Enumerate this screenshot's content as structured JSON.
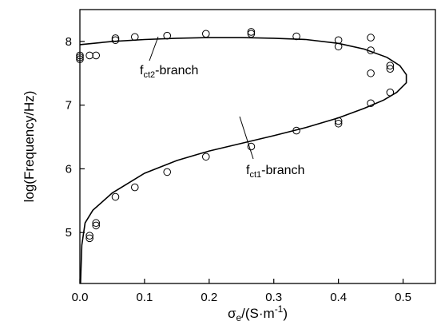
{
  "chart_data": {
    "type": "scatter",
    "xlabel_parts": {
      "sigma": "σ",
      "sub": "e",
      "pre": "/(S·m",
      "sup": "-1",
      "post": ")"
    },
    "ylabel": "log(Frequency/Hz)",
    "xlim": [
      0.0,
      0.55
    ],
    "ylim": [
      4.2,
      8.5
    ],
    "x_ticks": [
      "0.0",
      "0.1",
      "0.2",
      "0.3",
      "0.4",
      "0.5"
    ],
    "y_ticks": [
      "5",
      "6",
      "7",
      "8"
    ],
    "grid": false,
    "annotations": [
      {
        "main": "f",
        "sub": "ct2",
        "suffix": "-branch"
      },
      {
        "main": "f",
        "sub": "ct1",
        "suffix": "-branch"
      }
    ],
    "series": [
      {
        "marker": "open-circle",
        "points": [
          [
            0.0,
            7.72
          ],
          [
            0.0,
            7.75
          ],
          [
            0.0,
            7.78
          ],
          [
            0.015,
            7.78
          ],
          [
            0.025,
            7.78
          ],
          [
            0.055,
            8.02
          ],
          [
            0.055,
            8.05
          ],
          [
            0.085,
            8.07
          ],
          [
            0.135,
            8.09
          ],
          [
            0.195,
            8.12
          ],
          [
            0.265,
            8.12
          ],
          [
            0.265,
            8.15
          ],
          [
            0.335,
            8.08
          ],
          [
            0.4,
            8.02
          ],
          [
            0.4,
            7.92
          ],
          [
            0.45,
            8.06
          ],
          [
            0.45,
            7.86
          ],
          [
            0.45,
            7.5
          ],
          [
            0.45,
            7.03
          ],
          [
            0.48,
            7.62
          ],
          [
            0.48,
            7.57
          ],
          [
            0.48,
            7.2
          ],
          [
            0.4,
            6.75
          ],
          [
            0.4,
            6.71
          ],
          [
            0.335,
            6.6
          ],
          [
            0.265,
            6.35
          ],
          [
            0.195,
            6.19
          ],
          [
            0.135,
            5.95
          ],
          [
            0.085,
            5.71
          ],
          [
            0.055,
            5.56
          ],
          [
            0.025,
            5.15
          ],
          [
            0.025,
            5.11
          ],
          [
            0.015,
            4.95
          ],
          [
            0.015,
            4.91
          ]
        ]
      },
      {
        "marker": "line",
        "points": [
          [
            0.001,
            4.2
          ],
          [
            0.003,
            4.8
          ],
          [
            0.008,
            5.15
          ],
          [
            0.02,
            5.35
          ],
          [
            0.05,
            5.62
          ],
          [
            0.1,
            5.93
          ],
          [
            0.15,
            6.13
          ],
          [
            0.2,
            6.28
          ],
          [
            0.25,
            6.4
          ],
          [
            0.3,
            6.52
          ],
          [
            0.35,
            6.65
          ],
          [
            0.4,
            6.8
          ],
          [
            0.44,
            6.95
          ],
          [
            0.47,
            7.08
          ],
          [
            0.49,
            7.2
          ],
          [
            0.505,
            7.35
          ],
          [
            0.505,
            7.48
          ],
          [
            0.495,
            7.62
          ],
          [
            0.475,
            7.75
          ],
          [
            0.44,
            7.88
          ],
          [
            0.4,
            7.97
          ],
          [
            0.35,
            8.03
          ],
          [
            0.3,
            8.05
          ],
          [
            0.25,
            8.06
          ],
          [
            0.2,
            8.06
          ],
          [
            0.15,
            8.05
          ],
          [
            0.1,
            8.03
          ],
          [
            0.05,
            8.0
          ],
          [
            0.0,
            7.95
          ]
        ]
      }
    ]
  }
}
